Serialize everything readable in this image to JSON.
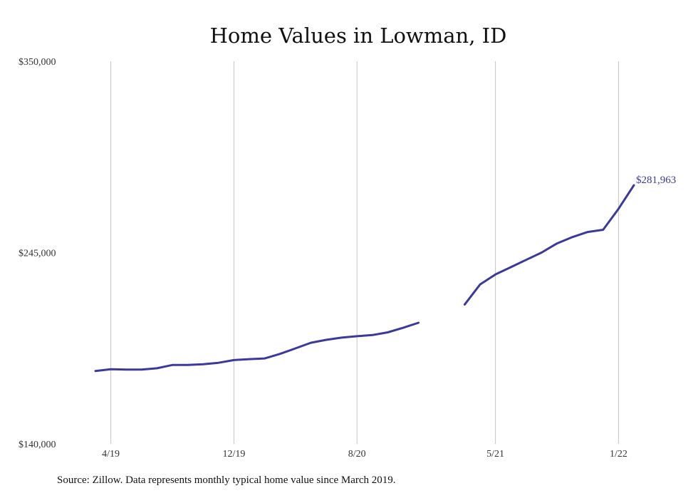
{
  "chart_data": {
    "type": "line",
    "title": "Home Values in Lowman, ID",
    "xlabel": "",
    "ylabel": "",
    "ylim": [
      140000,
      350000
    ],
    "y_ticks": [
      {
        "value": 140000,
        "label": "$140,000"
      },
      {
        "value": 245000,
        "label": "$245,000"
      },
      {
        "value": 350000,
        "label": "$350,000"
      }
    ],
    "x_ticks": [
      {
        "date": "2019-04",
        "label": "4/19"
      },
      {
        "date": "2019-12",
        "label": "12/19"
      },
      {
        "date": "2020-08",
        "label": "8/20"
      },
      {
        "date": "2021-05",
        "label": "5/21"
      },
      {
        "date": "2022-01",
        "label": "1/22"
      }
    ],
    "grid": "vertical",
    "line_color": "#3b3a9a",
    "series": [
      {
        "x": [
          "2019-03",
          "2019-04",
          "2019-05",
          "2019-06",
          "2019-07",
          "2019-08",
          "2019-09",
          "2019-10",
          "2019-11",
          "2019-12",
          "2020-01",
          "2020-02",
          "2020-03",
          "2020-04",
          "2020-05",
          "2020-06",
          "2020-07",
          "2020-08",
          "2020-09",
          "2020-10",
          "2020-11",
          "2020-12",
          "2021-01",
          "2021-02",
          "2021-03",
          "2021-04",
          "2021-05",
          "2021-06",
          "2021-07",
          "2021-08",
          "2021-09",
          "2021-10",
          "2021-11",
          "2021-12",
          "2022-01",
          "2022-02"
        ],
        "y": [
          180000,
          181000,
          180800,
          180800,
          181500,
          183300,
          183300,
          183700,
          184500,
          186000,
          186500,
          186900,
          189400,
          192400,
          195500,
          197100,
          198300,
          199100,
          199700,
          201200,
          203700,
          206500,
          null,
          null,
          216500,
          227500,
          233000,
          237000,
          241000,
          245000,
          250000,
          253500,
          256300,
          257500,
          269000,
          281963
        ]
      }
    ],
    "end_label": "$281,963",
    "source_note": "Source: Zillow. Data represents monthly typical home value since March 2019."
  }
}
